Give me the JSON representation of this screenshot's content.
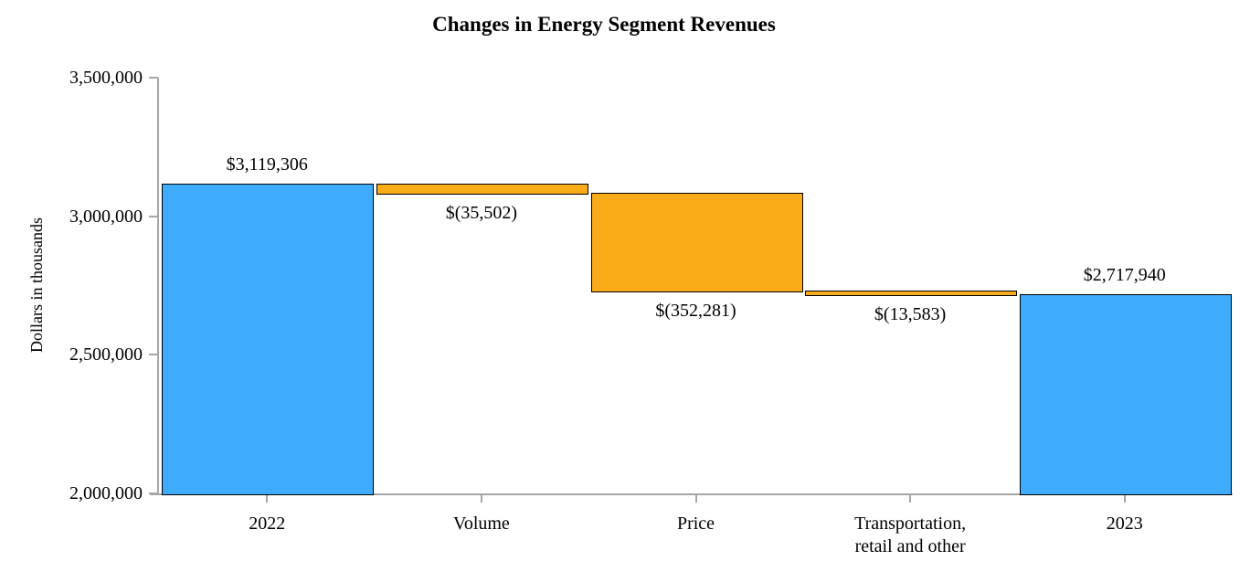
{
  "chart_data": {
    "type": "bar",
    "subtype": "waterfall",
    "title": "Changes in Energy Segment Revenues",
    "ylabel": "Dollars in thousands",
    "xlabel": "",
    "ylim": [
      2000000,
      3500000
    ],
    "grid": false,
    "legend": false,
    "yticks": [
      {
        "value": 3500000,
        "label": "3,500,000"
      },
      {
        "value": 3000000,
        "label": "3,000,000"
      },
      {
        "value": 2500000,
        "label": "2,500,000"
      },
      {
        "value": 2000000,
        "label": "2,000,000"
      }
    ],
    "categories": [
      "2022",
      "Volume",
      "Price",
      "Transportation,\nretail and other",
      "2023"
    ],
    "bars": [
      {
        "category": "2022",
        "value": 3119306,
        "value_label": "$3,119,306",
        "start": 2000000,
        "end": 3119306,
        "role": "total",
        "value_label_position": "above"
      },
      {
        "category": "Volume",
        "value": -35502,
        "value_label": "$(35,502)",
        "start": 3083804,
        "end": 3119306,
        "role": "decrease",
        "value_label_position": "below"
      },
      {
        "category": "Price",
        "value": -352281,
        "value_label": "$(352,281)",
        "start": 2731523,
        "end": 3083804,
        "role": "decrease",
        "value_label_position": "below"
      },
      {
        "category": "Transportation,\nretail and other",
        "value": -13583,
        "value_label": "$(13,583)",
        "start": 2717940,
        "end": 2731523,
        "role": "decrease",
        "value_label_position": "below"
      },
      {
        "category": "2023",
        "value": 2717940,
        "value_label": "$2,717,940",
        "start": 2000000,
        "end": 2717940,
        "role": "total",
        "value_label_position": "above"
      }
    ],
    "colors": {
      "total": "#3fabfb",
      "decrease": "#f9ac18",
      "bar_border": "#000000",
      "axis": "#a6a6a6",
      "text": "#000000"
    }
  }
}
